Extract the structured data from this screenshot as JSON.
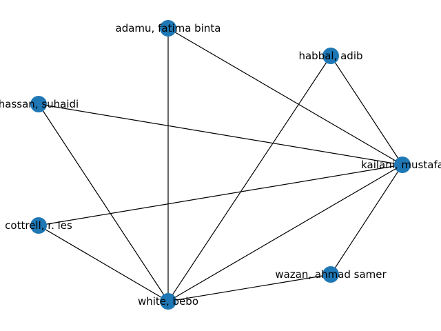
{
  "graph": {
    "node_color": "#1f77b4",
    "edge_color": "#000000",
    "nodes": [
      {
        "id": "adamu",
        "label": "adamu, fatima binta"
      },
      {
        "id": "habbal",
        "label": "habbal, adib"
      },
      {
        "id": "hassan",
        "label": "hassan, suhaidi"
      },
      {
        "id": "kailani",
        "label": "kailani, mustafa"
      },
      {
        "id": "cottrell",
        "label": "cottrell, r. les"
      },
      {
        "id": "wazan",
        "label": "wazan, ahmad samer"
      },
      {
        "id": "white",
        "label": "white, bebo"
      }
    ],
    "edges": [
      [
        "adamu",
        "kailani"
      ],
      [
        "adamu",
        "white"
      ],
      [
        "habbal",
        "kailani"
      ],
      [
        "habbal",
        "white"
      ],
      [
        "hassan",
        "kailani"
      ],
      [
        "hassan",
        "white"
      ],
      [
        "kailani",
        "cottrell"
      ],
      [
        "kailani",
        "white"
      ],
      [
        "kailani",
        "wazan"
      ],
      [
        "cottrell",
        "white"
      ],
      [
        "wazan",
        "white"
      ]
    ]
  }
}
